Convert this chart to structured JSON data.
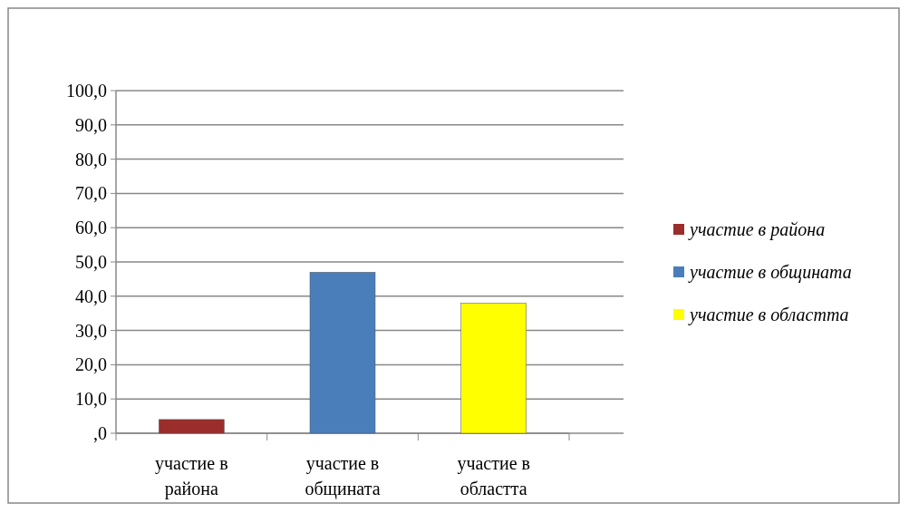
{
  "chart_data": {
    "type": "bar",
    "categories": [
      "участие в района",
      "участие в общината",
      "участие в областта"
    ],
    "series": [
      {
        "name": "участие в района",
        "color": "#9b2d2a",
        "values": [
          4.0,
          null,
          null
        ]
      },
      {
        "name": "участие в общината",
        "color": "#4a7ebb",
        "values": [
          null,
          47.0,
          null
        ]
      },
      {
        "name": "участие в областта",
        "color": "#ffff00",
        "values": [
          null,
          null,
          38.0
        ]
      }
    ],
    "ylim": [
      0,
      100
    ],
    "yticks": [
      {
        "value": 0,
        "label": ",0"
      },
      {
        "value": 10,
        "label": "10,0"
      },
      {
        "value": 20,
        "label": "20,0"
      },
      {
        "value": 30,
        "label": "30,0"
      },
      {
        "value": 40,
        "label": "40,0"
      },
      {
        "value": 50,
        "label": "50,0"
      },
      {
        "value": 60,
        "label": "60,0"
      },
      {
        "value": 70,
        "label": "70,0"
      },
      {
        "value": 80,
        "label": "80,0"
      },
      {
        "value": 90,
        "label": "90,0"
      },
      {
        "value": 100,
        "label": "100,0"
      }
    ],
    "grid": "y",
    "legend": "right"
  }
}
